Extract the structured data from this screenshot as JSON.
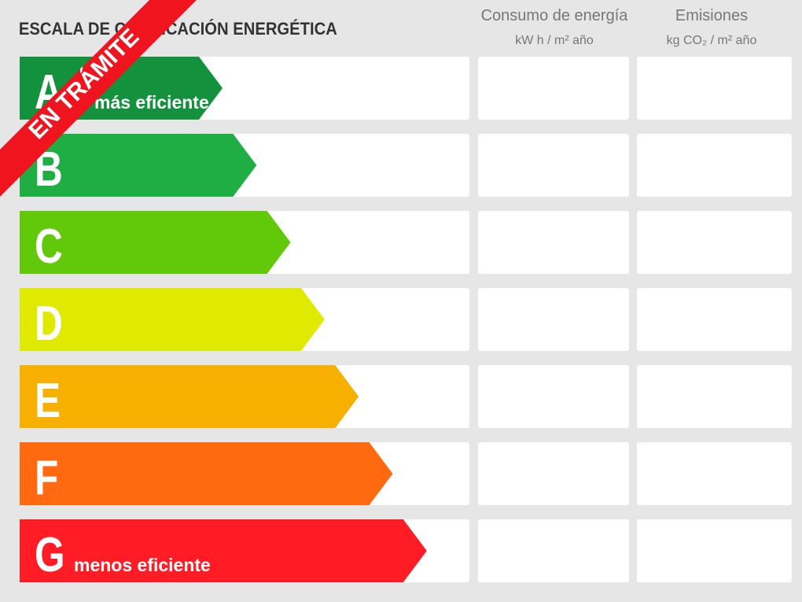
{
  "header": {
    "title": "ESCALA DE CALIFICACIÓN ENERGÉTICA",
    "columns": [
      {
        "title": "Consumo de energía",
        "unit": "kW h / m² año"
      },
      {
        "title": "Emisiones",
        "unit": "kg CO₂ / m² año"
      }
    ]
  },
  "rows": [
    {
      "letter": "A",
      "note": "más eficiente",
      "color": "#13913d"
    },
    {
      "letter": "B",
      "color": "#1fae43"
    },
    {
      "letter": "C",
      "color": "#62c80a"
    },
    {
      "letter": "D",
      "color": "#dfea00"
    },
    {
      "letter": "E",
      "color": "#f8b000"
    },
    {
      "letter": "F",
      "color": "#ff6a10"
    },
    {
      "letter": "G",
      "note": "menos eficiente",
      "color": "#ff1c24"
    }
  ],
  "stamp": "EN TRÁMITE"
}
